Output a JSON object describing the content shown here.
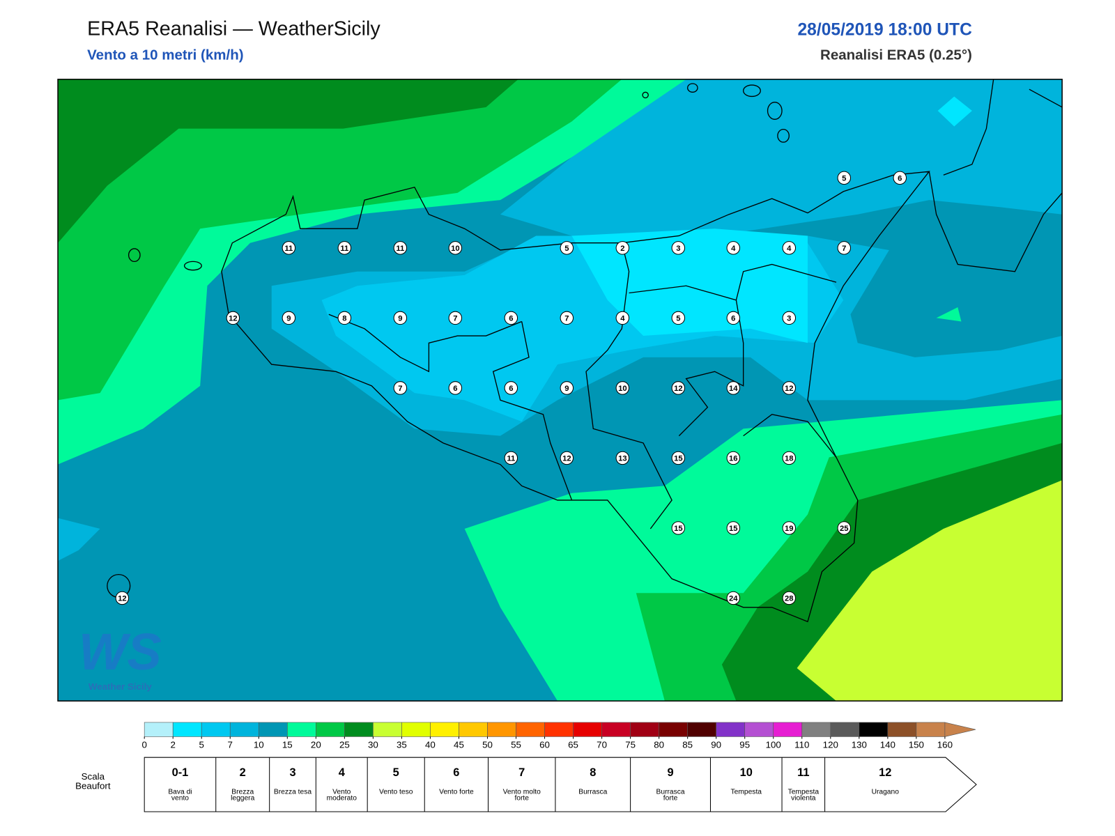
{
  "header": {
    "title": "ERA5 Reanalisi — WeatherSicily",
    "subtitle": "Vento a 10 metri (km/h)",
    "datetime": "28/05/2019 18:00 UTC",
    "source": "Reanalisi ERA5 (0.25°)"
  },
  "stations": [
    {
      "value": 5
    },
    {
      "value": 6
    },
    {
      "value": 11
    },
    {
      "value": 11
    },
    {
      "value": 11
    },
    {
      "value": 10
    },
    {
      "value": 5
    },
    {
      "value": 2
    },
    {
      "value": 3
    },
    {
      "value": 4
    },
    {
      "value": 4
    },
    {
      "value": 7
    },
    {
      "value": 12
    },
    {
      "value": 9
    },
    {
      "value": 8
    },
    {
      "value": 9
    },
    {
      "value": 7
    },
    {
      "value": 6
    },
    {
      "value": 7
    },
    {
      "value": 4
    },
    {
      "value": 5
    },
    {
      "value": 6
    },
    {
      "value": 3
    },
    {
      "value": 7
    },
    {
      "value": 6
    },
    {
      "value": 6
    },
    {
      "value": 9
    },
    {
      "value": 10
    },
    {
      "value": 12
    },
    {
      "value": 14
    },
    {
      "value": 12
    },
    {
      "value": 11
    },
    {
      "value": 12
    },
    {
      "value": 13
    },
    {
      "value": 15
    },
    {
      "value": 16
    },
    {
      "value": 18
    },
    {
      "value": 15
    },
    {
      "value": 15
    },
    {
      "value": 19
    },
    {
      "value": 25
    },
    {
      "value": 24
    },
    {
      "value": 28
    },
    {
      "value": 12
    }
  ],
  "colorbar": {
    "ticks": [
      0,
      2,
      5,
      7,
      10,
      15,
      20,
      25,
      30,
      35,
      40,
      45,
      50,
      55,
      60,
      65,
      70,
      75,
      80,
      85,
      90,
      95,
      100,
      110,
      120,
      130,
      140,
      150,
      160
    ],
    "colors": [
      "#b4f0fa",
      "#00e6ff",
      "#00c8f0",
      "#00b4dc",
      "#0096b4",
      "#00fa9a",
      "#00c846",
      "#008c1e",
      "#c8ff32",
      "#e1ff00",
      "#fff000",
      "#ffc800",
      "#ff9600",
      "#ff6400",
      "#ff3200",
      "#e60000",
      "#c80023",
      "#a00014",
      "#780000",
      "#500000",
      "#8232c8",
      "#b450d2",
      "#e61ed2",
      "#808080",
      "#5a5a5a",
      "#000000",
      "#8c5028",
      "#c8824b"
    ]
  },
  "beaufort": {
    "title": "Scala Beaufort",
    "scale": [
      {
        "force": "0-1",
        "label": "Bava di vento"
      },
      {
        "force": "2",
        "label": "Brezza leggera"
      },
      {
        "force": "3",
        "label": "Brezza tesa"
      },
      {
        "force": "4",
        "label": "Vento moderato"
      },
      {
        "force": "5",
        "label": "Vento teso"
      },
      {
        "force": "6",
        "label": "Vento forte"
      },
      {
        "force": "7",
        "label": "Vento molto forte"
      },
      {
        "force": "8",
        "label": "Burrasca"
      },
      {
        "force": "9",
        "label": "Burrasca forte"
      },
      {
        "force": "10",
        "label": "Tempesta"
      },
      {
        "force": "11",
        "label": "Tempesta violenta"
      },
      {
        "force": "12",
        "label": "Uragano"
      }
    ]
  },
  "logo": {
    "mark": "WS",
    "name": "Weather Sicily"
  }
}
